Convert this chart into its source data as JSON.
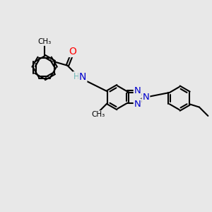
{
  "background_color": "#e8e8e8",
  "bond_color": "#000000",
  "bond_width": 1.5,
  "atom_colors": {
    "N": "#0000cc",
    "O": "#ff0000",
    "H": "#70b8b8",
    "C": "#000000"
  },
  "fig_width": 3.0,
  "fig_height": 3.0,
  "dpi": 100
}
